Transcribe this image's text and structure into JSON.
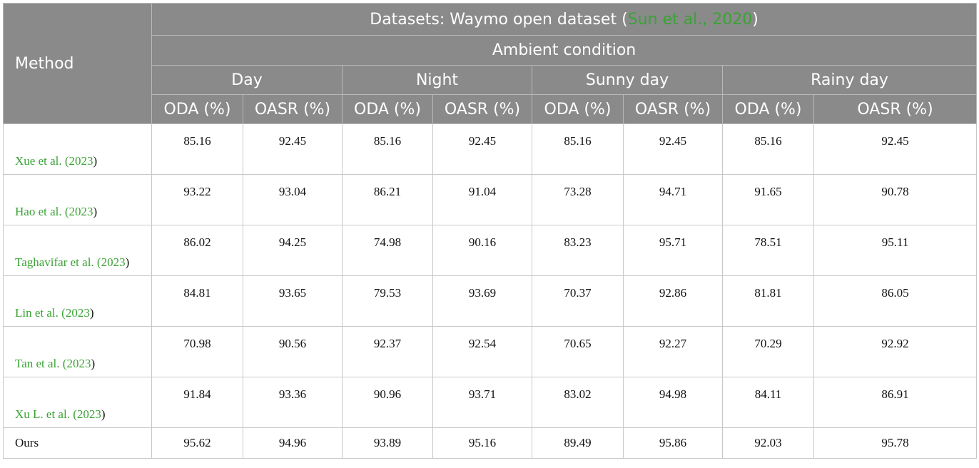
{
  "header": {
    "method": "Method",
    "title": [
      "Datasets: Waymo open dataset (",
      "Sun et al., 2020",
      ")"
    ],
    "subtitle": "Ambient condition",
    "conditions": [
      "Day",
      "Night",
      "Sunny day",
      "Rainy day"
    ],
    "metrics": [
      "ODA (%)",
      "OASR (%)"
    ]
  },
  "table": {
    "rows": [
      {
        "method": [
          "Xue et al. (",
          "2023",
          ")"
        ],
        "values": [
          85.16,
          92.45,
          85.16,
          92.45,
          85.16,
          92.45,
          85.16,
          92.45
        ]
      },
      {
        "method": [
          "Hao et al. (",
          "2023",
          ")"
        ],
        "values": [
          93.22,
          93.04,
          86.21,
          91.04,
          73.28,
          94.71,
          91.65,
          90.78
        ]
      },
      {
        "method": [
          "Taghavifar et al. (",
          "2023",
          ")"
        ],
        "values": [
          86.02,
          94.25,
          74.98,
          90.16,
          83.23,
          95.71,
          78.51,
          95.11
        ]
      },
      {
        "method": [
          "Lin et al. (",
          "2023",
          ")"
        ],
        "values": [
          84.81,
          93.65,
          79.53,
          93.69,
          70.37,
          92.86,
          81.81,
          86.05
        ]
      },
      {
        "method": [
          "Tan et al. (",
          "2023",
          ")"
        ],
        "values": [
          70.98,
          90.56,
          92.37,
          92.54,
          70.65,
          92.27,
          70.29,
          92.92
        ]
      },
      {
        "method": [
          "Xu L. et al. (",
          "2023",
          ")"
        ],
        "values": [
          91.84,
          93.36,
          90.96,
          93.71,
          83.02,
          94.98,
          84.11,
          86.91
        ]
      },
      {
        "method": [
          "Ours"
        ],
        "values": [
          95.62,
          94.96,
          93.89,
          95.16,
          89.49,
          95.86,
          92.03,
          95.78
        ]
      }
    ]
  }
}
